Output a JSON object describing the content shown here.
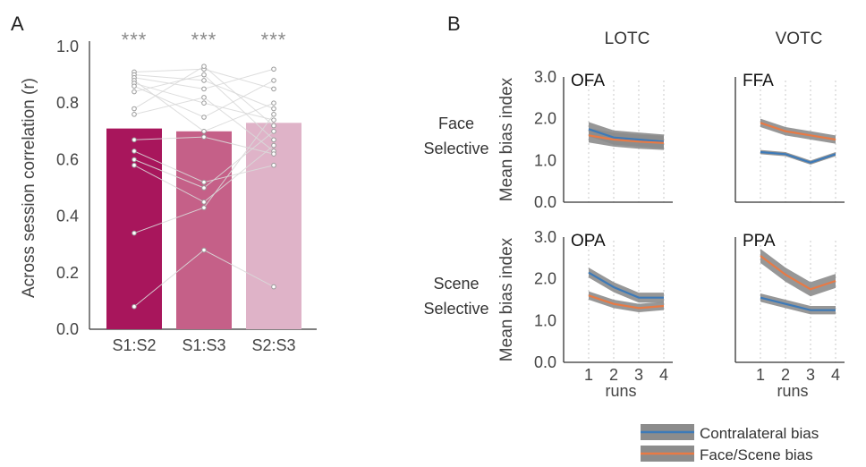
{
  "panels": {
    "a_label": "A",
    "b_label": "B"
  },
  "chart_data": [
    {
      "type": "bar",
      "panel": "A",
      "categories": [
        "S1:S2",
        "S1:S3",
        "S2:S3"
      ],
      "values": [
        0.71,
        0.7,
        0.73
      ],
      "colors": [
        "#a8165c",
        "#c56088",
        "#dfb3c8"
      ],
      "significance": [
        "***",
        "***",
        "***"
      ],
      "ylabel": "Across session correlation (r)",
      "ylim": [
        0,
        1.0
      ],
      "yticks": [
        "0.0",
        "0.2",
        "0.4",
        "0.6",
        "0.8",
        "1.0"
      ],
      "subject_points": [
        {
          "S1:S2": 0.91,
          "S1:S3": 0.92,
          "S2:S3": 0.85
        },
        {
          "S1:S2": 0.9,
          "S1:S3": 0.88,
          "S2:S3": 0.78
        },
        {
          "S1:S2": 0.89,
          "S1:S3": 0.85,
          "S2:S3": 0.92
        },
        {
          "S1:S2": 0.88,
          "S1:S3": 0.7,
          "S2:S3": 0.8
        },
        {
          "S1:S2": 0.87,
          "S1:S3": 0.8,
          "S2:S3": 0.74
        },
        {
          "S1:S2": 0.86,
          "S1:S3": 0.75,
          "S2:S3": 0.88
        },
        {
          "S1:S2": 0.84,
          "S1:S3": 0.9,
          "S2:S3": 0.67
        },
        {
          "S1:S2": 0.78,
          "S1:S3": 0.93,
          "S2:S3": 0.72
        },
        {
          "S1:S2": 0.76,
          "S1:S3": 0.82,
          "S2:S3": 0.63
        },
        {
          "S1:S2": 0.67,
          "S1:S3": 0.68,
          "S2:S3": 0.62
        },
        {
          "S1:S2": 0.63,
          "S1:S3": 0.52,
          "S2:S3": 0.58
        },
        {
          "S1:S2": 0.6,
          "S1:S3": 0.5,
          "S2:S3": 0.7
        },
        {
          "S1:S2": 0.58,
          "S1:S3": 0.45,
          "S2:S3": 0.65
        },
        {
          "S1:S2": 0.34,
          "S1:S3": 0.43,
          "S2:S3": 0.76
        },
        {
          "S1:S2": 0.08,
          "S1:S3": 0.28,
          "S2:S3": 0.15
        }
      ]
    },
    {
      "type": "line",
      "panel": "B",
      "column_headers": [
        "LOTC",
        "VOTC"
      ],
      "row_headers": [
        [
          "Face",
          "Selective"
        ],
        [
          "Scene",
          "Selective"
        ]
      ],
      "ylabel": "Mean bias index",
      "xlabel": "runs",
      "x": [
        1,
        2,
        3,
        4
      ],
      "xticks": [
        "1",
        "2",
        "3",
        "4"
      ],
      "ylim": [
        0,
        3.0
      ],
      "yticks": [
        "0.0",
        "1.0",
        "2.0",
        "3.0"
      ],
      "series_names": [
        "Contralateral bias",
        "Face/Scene bias"
      ],
      "series_colors": [
        "#3d7ab8",
        "#e87a45"
      ],
      "band_color": "#8c8c8c",
      "subplots": [
        {
          "roi": "OFA",
          "row": 0,
          "col": 0,
          "contralateral": {
            "values": [
              1.75,
              1.55,
              1.5,
              1.45
            ],
            "error": 0.17
          },
          "face_scene": {
            "values": [
              1.6,
              1.5,
              1.45,
              1.42
            ],
            "error": 0.17
          }
        },
        {
          "roi": "FFA",
          "row": 0,
          "col": 1,
          "contralateral": {
            "values": [
              1.2,
              1.15,
              0.95,
              1.15
            ],
            "error": 0.05
          },
          "face_scene": {
            "values": [
              1.9,
              1.7,
              1.6,
              1.5
            ],
            "error": 0.1
          }
        },
        {
          "roi": "OPA",
          "row": 1,
          "col": 0,
          "contralateral": {
            "values": [
              2.15,
              1.8,
              1.55,
              1.55
            ],
            "error": 0.12
          },
          "face_scene": {
            "values": [
              1.6,
              1.4,
              1.3,
              1.35
            ],
            "error": 0.1
          }
        },
        {
          "roi": "PPA",
          "row": 1,
          "col": 1,
          "contralateral": {
            "values": [
              1.55,
              1.4,
              1.25,
              1.25
            ],
            "error": 0.1
          },
          "face_scene": {
            "values": [
              2.55,
              2.1,
              1.75,
              1.95
            ],
            "error": 0.17
          }
        }
      ]
    }
  ],
  "legend": {
    "entries": [
      "Contralateral bias",
      "Face/Scene bias"
    ]
  }
}
